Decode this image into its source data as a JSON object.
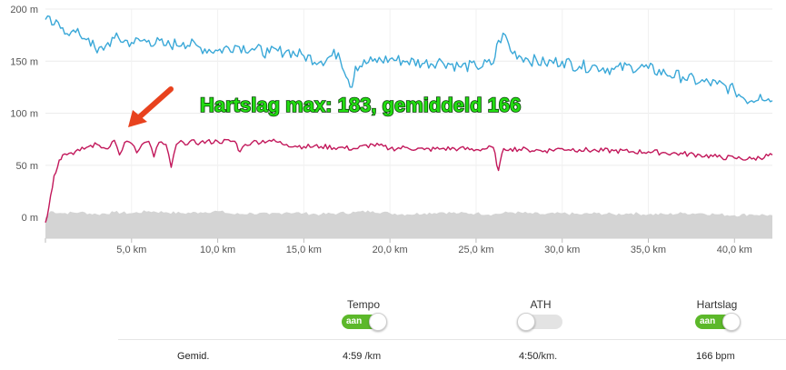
{
  "chart_data": {
    "type": "line",
    "y_ticks": [
      "200 m",
      "150 m",
      "100 m",
      "50 m",
      "0 m"
    ],
    "y_tick_values": [
      200,
      150,
      100,
      50,
      0
    ],
    "ylim": [
      -20,
      200
    ],
    "x_ticks": [
      "5,0 km",
      "10,0 km",
      "15,0 km",
      "20,0 km",
      "25,0 km",
      "30,0 km",
      "35,0 km",
      "40,0 km"
    ],
    "x_tick_values": [
      5,
      10,
      15,
      20,
      25,
      30,
      35,
      40
    ],
    "xlim": [
      0,
      42.2
    ],
    "grid": true,
    "series": [
      {
        "color": "#3aa8d8",
        "x": [
          0,
          0.5,
          1,
          1.5,
          2,
          2.5,
          3,
          3.5,
          4,
          5,
          6,
          7,
          8,
          9,
          10,
          11,
          12,
          13,
          14,
          15,
          16,
          17,
          17.8,
          18,
          19,
          20,
          21,
          22,
          23,
          24,
          25,
          26,
          26.3,
          26.7,
          27,
          28,
          29,
          30,
          31,
          32,
          33,
          34,
          35,
          36,
          37,
          38,
          39,
          40,
          40.5,
          41,
          41.5,
          42.2
        ],
        "values": [
          190,
          185,
          182,
          178,
          175,
          172,
          158,
          165,
          172,
          168,
          170,
          165,
          168,
          163,
          160,
          165,
          162,
          158,
          160,
          155,
          150,
          158,
          125,
          145,
          150,
          152,
          150,
          148,
          150,
          145,
          145,
          148,
          170,
          175,
          160,
          152,
          148,
          150,
          145,
          145,
          142,
          145,
          143,
          138,
          135,
          130,
          128,
          122,
          115,
          112,
          118,
          112
        ]
      },
      {
        "color": "#c2185b",
        "x": [
          0,
          0.2,
          0.5,
          0.8,
          1,
          1.5,
          2,
          2.5,
          3,
          3.5,
          4,
          4.3,
          4.6,
          5,
          5.3,
          5.6,
          6,
          6.3,
          6.6,
          7,
          7.3,
          7.6,
          8,
          9,
          10,
          11,
          11.3,
          11.6,
          12,
          13,
          14,
          15,
          16,
          17,
          18,
          19,
          20,
          21,
          22,
          23,
          24,
          25,
          26,
          26.3,
          26.6,
          27,
          28,
          29,
          30,
          31,
          32,
          33,
          34,
          35,
          36,
          37,
          38,
          39,
          40,
          41,
          42.2
        ],
        "values": [
          -5,
          10,
          40,
          55,
          60,
          62,
          64,
          68,
          70,
          66,
          74,
          60,
          72,
          71,
          62,
          70,
          73,
          58,
          72,
          70,
          48,
          70,
          72,
          72,
          73,
          73,
          63,
          70,
          72,
          74,
          70,
          68,
          68,
          67,
          66,
          70,
          66,
          67,
          65,
          66,
          66,
          65,
          67,
          45,
          66,
          66,
          65,
          64,
          66,
          65,
          64,
          64,
          63,
          63,
          62,
          61,
          60,
          58,
          57,
          56,
          60
        ]
      },
      {
        "color": "#d4d4d4",
        "x": [
          0,
          0.3,
          1,
          2,
          3,
          4,
          5,
          6,
          7,
          8,
          9,
          10,
          11,
          12,
          13,
          14,
          15,
          16,
          17,
          18,
          19,
          20,
          21,
          22,
          23,
          24,
          25,
          26,
          27,
          28,
          29,
          30,
          31,
          32,
          33,
          34,
          35,
          36,
          37,
          38,
          39,
          40,
          41,
          42.2
        ],
        "values": [
          0,
          6,
          4,
          5,
          3,
          5,
          4,
          6,
          5,
          4,
          5,
          6,
          3,
          4,
          3,
          5,
          4,
          3,
          4,
          5,
          6,
          4,
          3,
          4,
          5,
          4,
          4,
          3,
          5,
          4,
          3,
          4,
          3,
          4,
          3,
          4,
          3,
          3,
          4,
          4,
          3,
          2,
          3,
          2
        ]
      }
    ]
  },
  "annotation": {
    "text": "Hartslag max: 183, gemiddeld 166",
    "arrow_color": "#e8421e"
  },
  "controls": [
    {
      "label": "Tempo",
      "state": "on",
      "toggle_text": "aan"
    },
    {
      "label": "ATH",
      "state": "off",
      "toggle_text": ""
    },
    {
      "label": "Hartslag",
      "state": "on",
      "toggle_text": "aan"
    }
  ],
  "averages": {
    "row_label": "Gemid.",
    "tempo_value": "4:59",
    "tempo_unit": "/km",
    "ath_value": "4:50",
    "ath_unit": "/km.",
    "hr_value": "166",
    "hr_unit": "bpm"
  }
}
